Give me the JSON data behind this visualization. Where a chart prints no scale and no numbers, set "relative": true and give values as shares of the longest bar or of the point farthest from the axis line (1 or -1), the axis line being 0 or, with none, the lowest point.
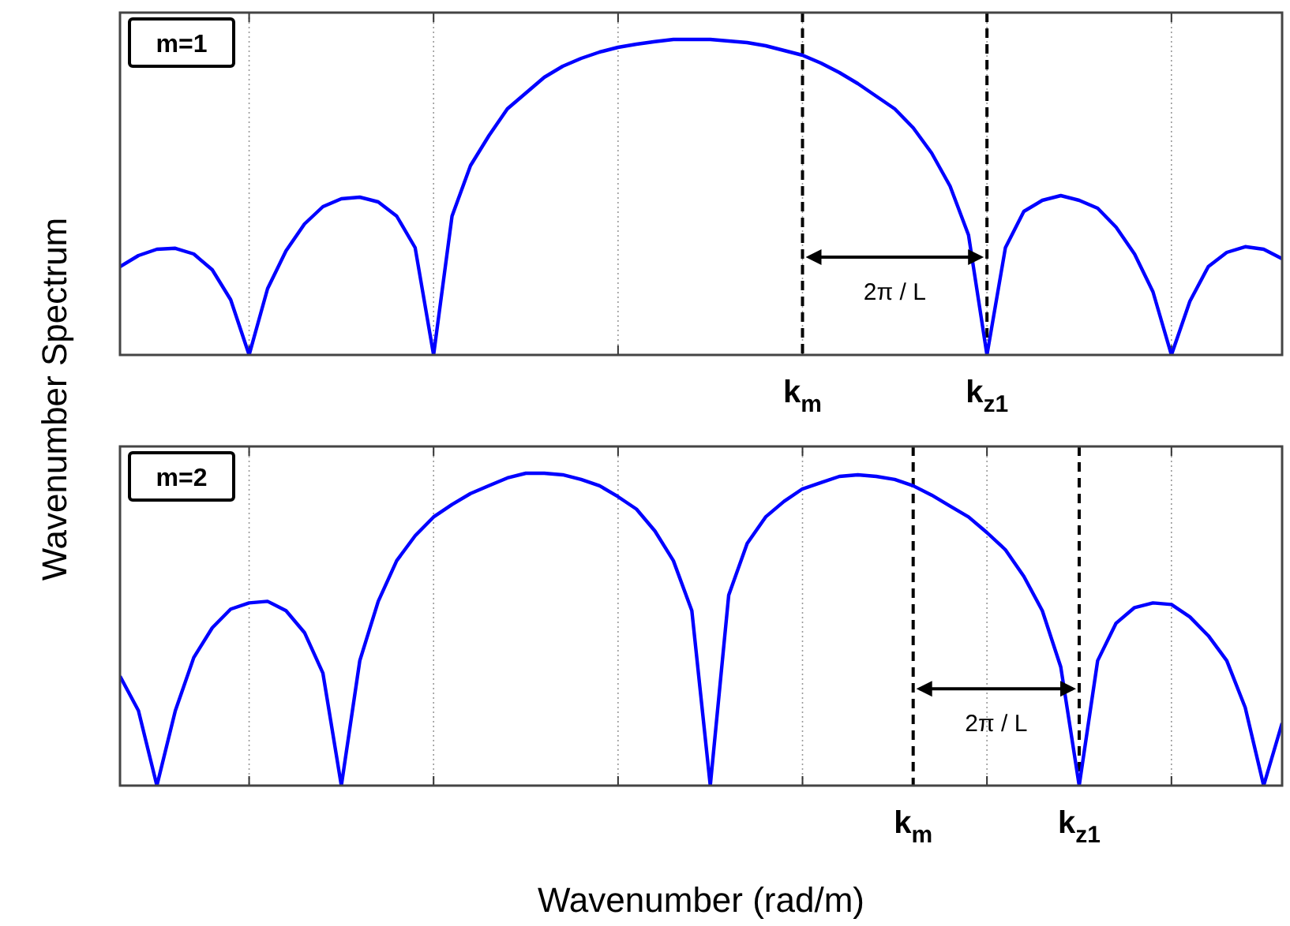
{
  "chart_data": [
    {
      "type": "line",
      "ylabel": "Wavenumber Spectrum",
      "relative": true,
      "grid": "x",
      "annotations": [
        "m=1",
        "2π / L",
        "k$_{m}$",
        "k$_{z1}$"
      ],
      "categories": [
        null,
        null,
        null,
        null,
        null,
        null,
        null,
        null,
        null,
        null,
        null,
        null,
        null,
        null,
        null,
        null,
        null,
        null,
        null,
        null,
        null,
        null,
        null,
        null,
        null,
        null,
        null,
        null,
        null,
        null,
        null,
        null,
        null,
        null,
        null,
        null,
        null,
        null,
        null,
        null,
        null,
        null,
        null,
        null,
        null,
        null,
        null,
        null,
        null,
        null,
        null,
        null,
        null,
        null,
        null,
        null,
        null,
        null,
        null,
        null,
        null,
        null,
        null,
        null
      ],
      "series": [
        {
          "color": "#0000ff",
          "values": [
            0.28,
            0.315,
            0.335,
            0.338,
            0.32,
            0.27,
            0.175,
            0,
            0.21,
            0.33,
            0.415,
            0.47,
            0.495,
            0.5,
            0.485,
            0.44,
            0.34,
            0,
            0.44,
            0.6,
            0.695,
            0.78,
            0.83,
            0.88,
            0.915,
            0.94,
            0.96,
            0.975,
            0.985,
            0.993,
            1.0,
            1.0,
            1.0,
            0.995,
            0.99,
            0.98,
            0.965,
            0.95,
            0.925,
            0.895,
            0.86,
            0.82,
            0.78,
            0.72,
            0.64,
            0.535,
            0.38,
            0,
            0.34,
            0.455,
            0.49,
            0.505,
            0.49,
            0.465,
            0.405,
            0.32,
            0.2,
            0,
            0.17,
            0.28,
            0.325,
            0.343,
            0.335,
            0.305
          ]
        }
      ]
    },
    {
      "type": "line",
      "xlabel": "Wavenumber (rad/m)",
      "relative": true,
      "grid": "x",
      "annotations": [
        "m=2",
        "2π / L",
        "k$_{m}$",
        "k$_{z1}$"
      ],
      "categories": [
        null,
        null,
        null,
        null,
        null,
        null,
        null,
        null,
        null,
        null,
        null,
        null,
        null,
        null,
        null,
        null,
        null,
        null,
        null,
        null,
        null,
        null,
        null,
        null,
        null,
        null,
        null,
        null,
        null,
        null,
        null,
        null,
        null,
        null,
        null,
        null,
        null,
        null,
        null,
        null,
        null,
        null,
        null,
        null,
        null,
        null,
        null,
        null,
        null,
        null,
        null,
        null,
        null,
        null,
        null,
        null,
        null,
        null,
        null,
        null,
        null,
        null,
        null,
        null
      ],
      "series": [
        {
          "color": "#0000ff",
          "values": [
            0.35,
            0.24,
            0,
            0.24,
            0.41,
            0.505,
            0.565,
            0.585,
            0.59,
            0.56,
            0.49,
            0.36,
            0,
            0.4,
            0.59,
            0.72,
            0.8,
            0.86,
            0.9,
            0.935,
            0.96,
            0.985,
            1.0,
            1.0,
            0.995,
            0.98,
            0.96,
            0.925,
            0.885,
            0.815,
            0.72,
            0.56,
            0,
            0.61,
            0.775,
            0.86,
            0.91,
            0.95,
            0.97,
            0.99,
            0.995,
            0.99,
            0.98,
            0.96,
            0.93,
            0.895,
            0.86,
            0.81,
            0.755,
            0.67,
            0.56,
            0.38,
            0,
            0.4,
            0.52,
            0.57,
            0.585,
            0.58,
            0.54,
            0.48,
            0.4,
            0.25,
            0,
            0.2
          ]
        }
      ]
    }
  ]
}
